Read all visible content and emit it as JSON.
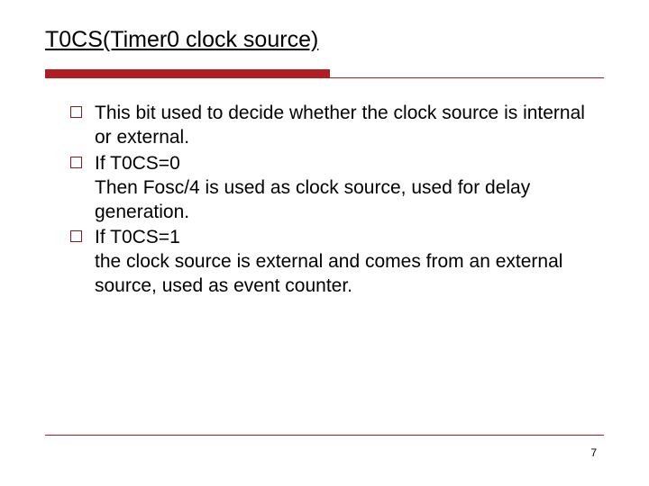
{
  "title": "T0CS(Timer0 clock source)",
  "bullets": [
    {
      "text": "This bit used to decide whether the clock source is internal or external."
    },
    {
      "text": "If T0CS=0\nThen Fosc/4 is used as clock source, used for delay generation."
    },
    {
      "text": "If T0CS=1\nthe clock source is external and comes from an external source, used as event counter."
    }
  ],
  "page_number": "7",
  "colors": {
    "accent": "#b01d22",
    "bullet_border": "#8b1a1a",
    "text": "#000000",
    "background": "#ffffff"
  },
  "layout": {
    "title_fontsize": 25,
    "body_fontsize": 21,
    "pagenum_fontsize": 12,
    "thick_bar_height": 10,
    "thick_bar_width_percent": 51,
    "bullet_box_size": 13
  }
}
